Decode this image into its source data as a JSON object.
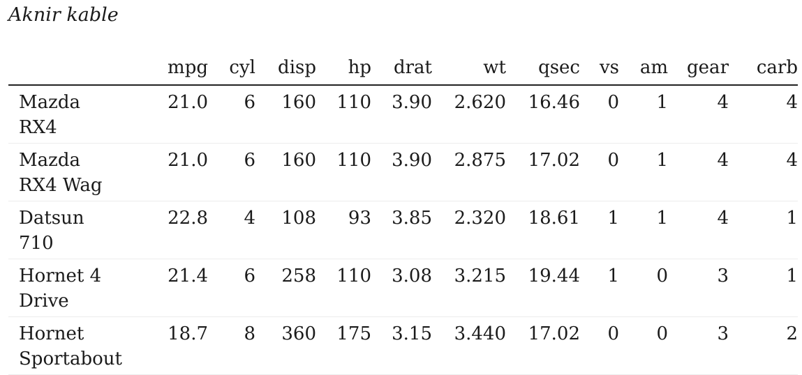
{
  "caption": "Aknir kable",
  "table": {
    "columns": [
      "",
      "mpg",
      "cyl",
      "disp",
      "hp",
      "drat",
      "wt",
      "qsec",
      "vs",
      "am",
      "gear",
      "carb"
    ],
    "rows": [
      {
        "name": "Mazda RX4",
        "values": [
          "21.0",
          "6",
          "160",
          "110",
          "3.90",
          "2.620",
          "16.46",
          "0",
          "1",
          "4",
          "4"
        ]
      },
      {
        "name": "Mazda RX4 Wag",
        "values": [
          "21.0",
          "6",
          "160",
          "110",
          "3.90",
          "2.875",
          "17.02",
          "0",
          "1",
          "4",
          "4"
        ]
      },
      {
        "name": "Datsun 710",
        "values": [
          "22.8",
          "4",
          "108",
          "93",
          "3.85",
          "2.320",
          "18.61",
          "1",
          "1",
          "4",
          "1"
        ]
      },
      {
        "name": "Hornet 4 Drive",
        "values": [
          "21.4",
          "6",
          "258",
          "110",
          "3.08",
          "3.215",
          "19.44",
          "1",
          "0",
          "3",
          "1"
        ]
      },
      {
        "name": "Hornet Sportabout",
        "values": [
          "18.7",
          "8",
          "360",
          "175",
          "3.15",
          "3.440",
          "17.02",
          "0",
          "0",
          "3",
          "2"
        ]
      }
    ]
  }
}
